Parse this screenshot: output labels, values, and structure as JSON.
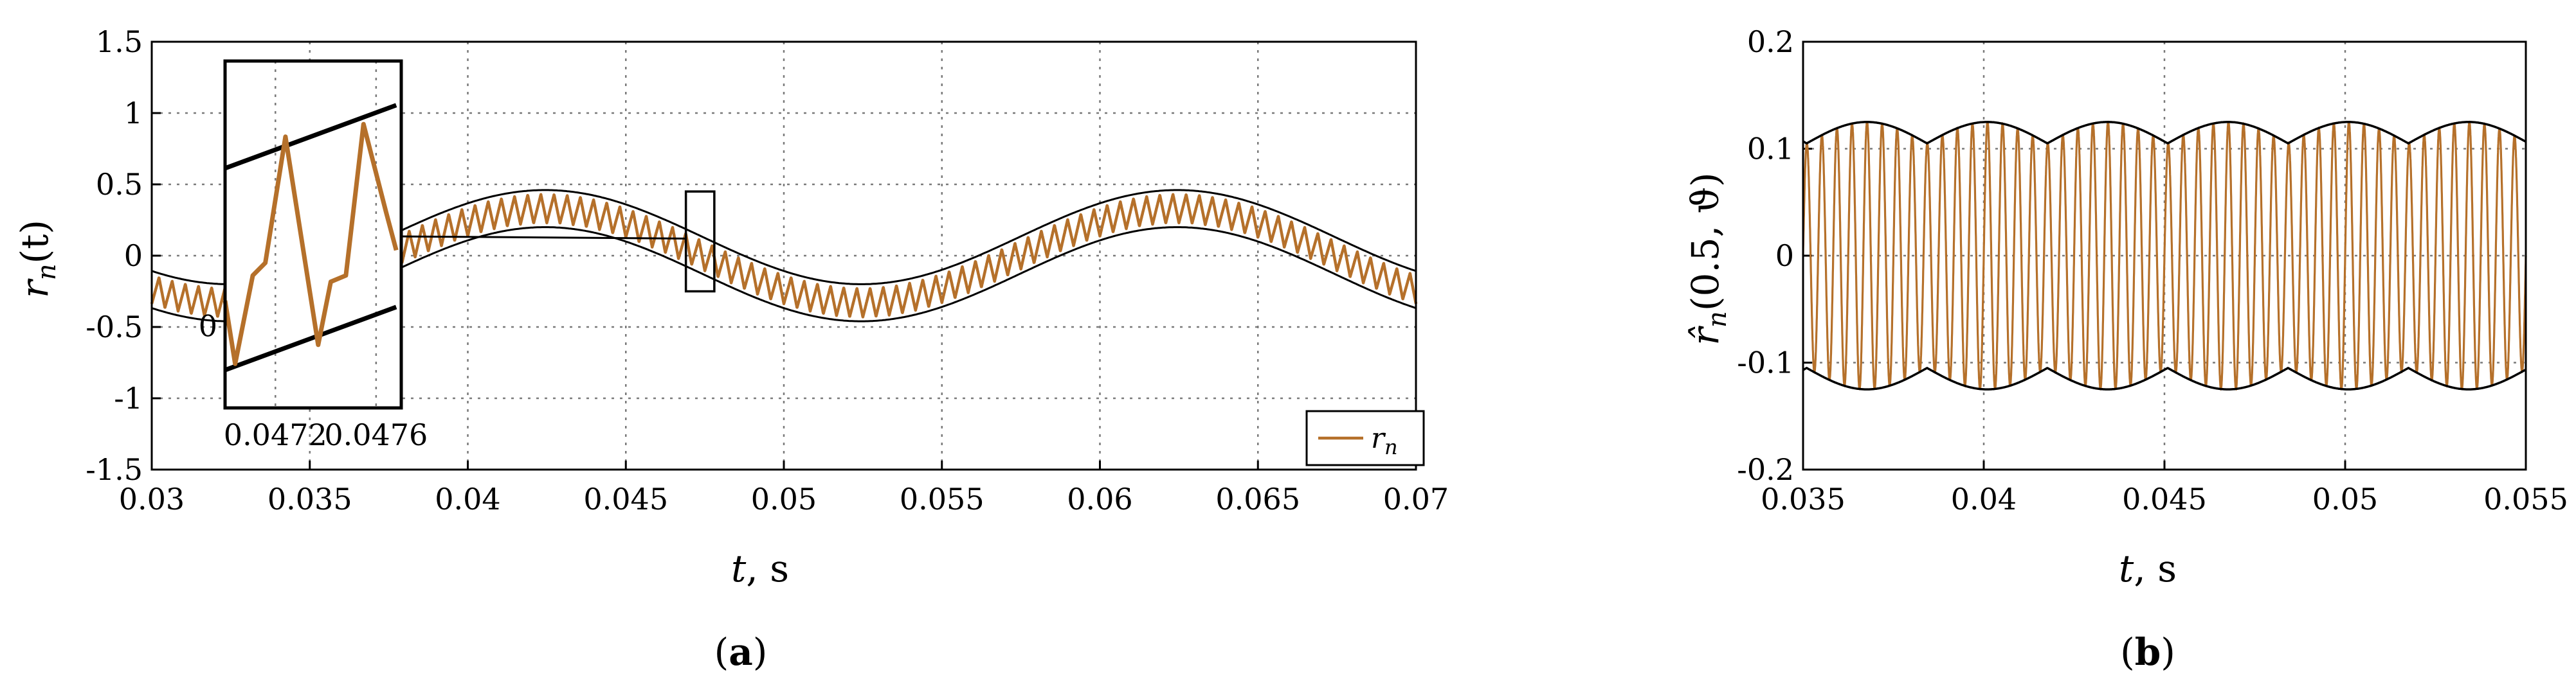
{
  "colors": {
    "signal": "#b5702a",
    "envelope": "#000000",
    "grid": "#7a7a7a"
  },
  "chart_data": [
    {
      "type": "line",
      "panel": "a",
      "caption": "a",
      "xlabel_var": "t",
      "xlabel_unit": ", s",
      "ylabel_var": "r",
      "ylabel_sub": "n",
      "ylabel_arg": "(t)",
      "xlim": [
        0.03,
        0.07
      ],
      "ylim": [
        -1.5,
        1.5
      ],
      "xticks": [
        "0.03",
        "0.035",
        "0.04",
        "0.045",
        "0.05",
        "0.055",
        "0.06",
        "0.065",
        "0.07"
      ],
      "yticks": [
        "1.5",
        "1",
        "0.5",
        "0",
        "-0.5",
        "-1",
        "-1.5"
      ],
      "grid": true,
      "legend": {
        "position": "bottom-right",
        "label_var": "r",
        "label_sub": "n"
      },
      "signal": {
        "base_amplitude": 0.33,
        "base_frequency_hz": 50,
        "base_phase_deg": 46,
        "ripple_amplitude": 0.1,
        "ripple_frequency_hz": 2400
      },
      "envelope": {
        "upper_offset": 0.13,
        "lower_offset": -0.13
      },
      "zoom_window": {
        "x": [
          0.0469,
          0.0478
        ],
        "y": [
          -0.25,
          0.45
        ]
      },
      "inset": {
        "xlim": [
          0.047,
          0.0477
        ],
        "xticks": [
          "0.0472",
          "0.0476"
        ],
        "yticks": [
          "0"
        ],
        "samples": [
          [
            0.047,
            -0.03
          ],
          [
            0.04704,
            -0.13
          ],
          [
            0.04711,
            0.01
          ],
          [
            0.04716,
            0.03
          ],
          [
            0.04724,
            0.23
          ],
          [
            0.04737,
            -0.1
          ],
          [
            0.04742,
            0.0
          ],
          [
            0.04748,
            0.01
          ],
          [
            0.04755,
            0.25
          ],
          [
            0.04764,
            0.11
          ],
          [
            0.04768,
            0.05
          ]
        ],
        "envelope_upper": [
          [
            0.047,
            0.18
          ],
          [
            0.04768,
            0.28
          ]
        ],
        "envelope_lower": [
          [
            0.047,
            -0.14
          ],
          [
            0.04768,
            -0.04
          ]
        ]
      }
    },
    {
      "type": "line",
      "panel": "b",
      "caption": "b",
      "xlabel_var": "t",
      "xlabel_unit": ", s",
      "ylabel_var": "r̂",
      "ylabel_sub": "n",
      "ylabel_arg": "(0.5, ϑ)",
      "xlim": [
        0.035,
        0.055
      ],
      "ylim": [
        -0.2,
        0.2
      ],
      "xticks": [
        "0.035",
        "0.04",
        "0.045",
        "0.05",
        "0.055"
      ],
      "yticks": [
        "0.2",
        "0.1",
        "0",
        "-0.1",
        "-0.2"
      ],
      "grid": true,
      "signal": {
        "carrier_frequency_hz": 2400,
        "amplitude_min": 0.105,
        "amplitude_max": 0.125,
        "envelope_period_s": 0.00333
      },
      "envelope": {
        "scallop_min": 0.105,
        "scallop_max": 0.125,
        "scallop_period_s": 0.00333
      }
    }
  ]
}
